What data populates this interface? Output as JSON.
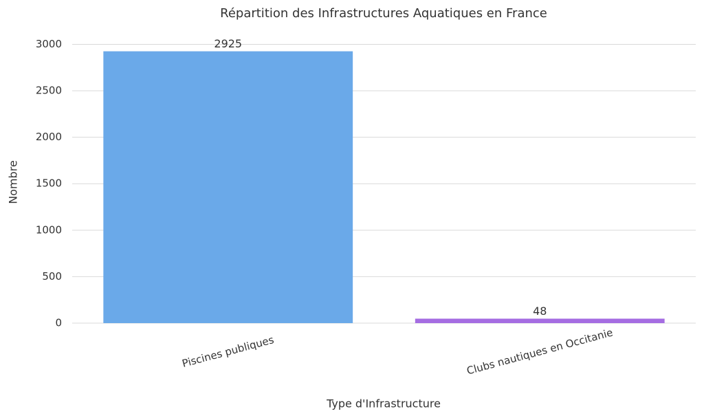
{
  "chart_data": {
    "type": "bar",
    "title": "Répartition des Infrastructures Aquatiques en France",
    "x_label": "Type d'Infrastructure",
    "y_label": "Nombre",
    "categories": [
      "Piscines publiques",
      "Clubs nautiques en Occitanie"
    ],
    "values": [
      2925,
      48
    ],
    "colors": [
      "#6aa9e9",
      "#a56de2"
    ],
    "ylim": [
      0,
      3070
    ],
    "yticks": [
      0,
      500,
      1000,
      1500,
      2000,
      2500,
      3000
    ],
    "grid": true
  }
}
